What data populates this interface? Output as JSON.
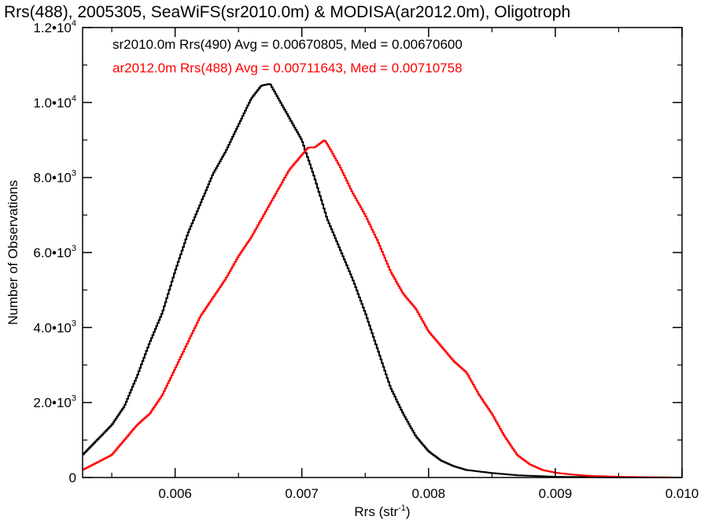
{
  "chart_data": {
    "type": "line",
    "title": "Rrs(488), 2005305, SeaWiFS(sr2010.0m) & MODISA(ar2012.0m), Oligotroph",
    "xlabel": "Rrs (str",
    "xlabel_sup": "-1",
    "xlabel_end": ")",
    "ylabel": "Number of Observations",
    "xlim": [
      0.00527,
      0.01
    ],
    "ylim": [
      0,
      12000
    ],
    "x_ticks": [
      {
        "value": 0.006,
        "label": "0.006"
      },
      {
        "value": 0.007,
        "label": "0.007"
      },
      {
        "value": 0.008,
        "label": "0.008"
      },
      {
        "value": 0.009,
        "label": "0.009"
      },
      {
        "value": 0.01,
        "label": "0.010"
      }
    ],
    "y_ticks": [
      {
        "value": 0,
        "base": "0",
        "exp": ""
      },
      {
        "value": 2000,
        "base": "2.0•10",
        "exp": "3"
      },
      {
        "value": 4000,
        "base": "4.0•10",
        "exp": "3"
      },
      {
        "value": 6000,
        "base": "6.0•10",
        "exp": "3"
      },
      {
        "value": 8000,
        "base": "8.0•10",
        "exp": "3"
      },
      {
        "value": 10000,
        "base": "1.0•10",
        "exp": "4"
      },
      {
        "value": 12000,
        "base": "1.2•10",
        "exp": "4"
      }
    ],
    "grid": false,
    "series": [
      {
        "name": "sr2010.0m Rrs(490)",
        "legend": "sr2010.0m Rrs(490) Avg = 0.00670805, Med = 0.00670600",
        "color": "#000000",
        "x": [
          0.00527,
          0.0055,
          0.0056,
          0.0057,
          0.0058,
          0.0059,
          0.006,
          0.0061,
          0.0062,
          0.0063,
          0.0064,
          0.0065,
          0.0066,
          0.00668,
          0.00675,
          0.0068,
          0.0069,
          0.007,
          0.0071,
          0.0072,
          0.0073,
          0.0074,
          0.0075,
          0.0076,
          0.0077,
          0.0078,
          0.0079,
          0.008,
          0.0081,
          0.0082,
          0.0083,
          0.0085,
          0.0087,
          0.009,
          0.0095,
          0.01
        ],
        "y": [
          600,
          1400,
          1900,
          2700,
          3600,
          4400,
          5500,
          6500,
          7300,
          8100,
          8700,
          9400,
          10100,
          10450,
          10500,
          10200,
          9600,
          9000,
          8000,
          6900,
          6100,
          5300,
          4400,
          3400,
          2400,
          1700,
          1100,
          700,
          450,
          300,
          200,
          120,
          60,
          20,
          5,
          0
        ]
      },
      {
        "name": "ar2012.0m Rrs(488)",
        "legend": "ar2012.0m Rrs(488) Avg = 0.00711643, Med = 0.00710758",
        "color": "#ff0000",
        "x": [
          0.00527,
          0.0055,
          0.0056,
          0.0057,
          0.0058,
          0.0059,
          0.006,
          0.0061,
          0.0062,
          0.0063,
          0.0064,
          0.0065,
          0.0066,
          0.0067,
          0.0068,
          0.0069,
          0.007,
          0.00705,
          0.0071,
          0.00718,
          0.0072,
          0.0073,
          0.0074,
          0.0075,
          0.0076,
          0.0077,
          0.0078,
          0.0079,
          0.008,
          0.0081,
          0.0082,
          0.0083,
          0.0084,
          0.0085,
          0.0086,
          0.0087,
          0.0088,
          0.0089,
          0.009,
          0.0091,
          0.0092,
          0.0093,
          0.0095,
          0.0098,
          0.01
        ],
        "y": [
          200,
          600,
          1000,
          1400,
          1700,
          2200,
          2900,
          3600,
          4300,
          4800,
          5300,
          5900,
          6400,
          7000,
          7600,
          8200,
          8600,
          8800,
          8800,
          9000,
          8900,
          8300,
          7600,
          7000,
          6300,
          5500,
          4900,
          4500,
          3900,
          3500,
          3100,
          2800,
          2200,
          1700,
          1100,
          600,
          350,
          200,
          130,
          90,
          60,
          40,
          20,
          5,
          0
        ]
      }
    ]
  }
}
